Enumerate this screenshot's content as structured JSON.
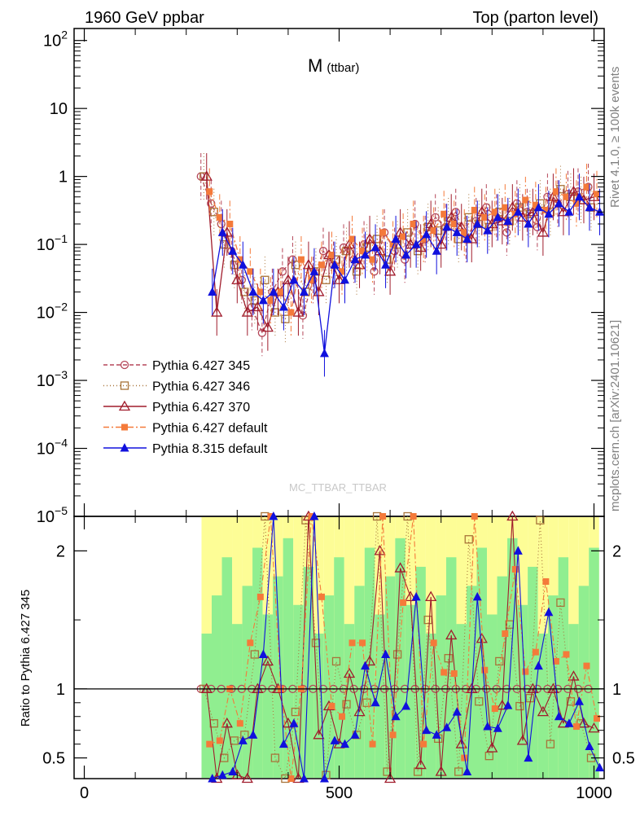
{
  "header": {
    "left": "1960 GeV ppbar",
    "right": "Top (parton level)"
  },
  "side": {
    "rivet": "Rivet 4.1.0, ≥ 100k events",
    "mcplots": "mcplots.cern.ch [arXiv:2401.10621]"
  },
  "watermark": "MC_TTBAR_TTBAR",
  "chart_data": {
    "type": "line",
    "title": "M",
    "title_sub": "(ttbar)",
    "xlabel": "",
    "ylabel": "",
    "ratio_ylabel": "Ratio to Pythia 6.427 345",
    "xlim": [
      -20,
      1020
    ],
    "ylim": [
      1e-05,
      150
    ],
    "ratio_ylim": [
      0.35,
      2.25
    ],
    "x_ticks": [
      0,
      500,
      1000
    ],
    "x_tick_labels": [
      "0",
      "500",
      "1000"
    ],
    "y_ticks": [
      100,
      10,
      1,
      0.1,
      0.01,
      0.001,
      0.0001,
      1e-05
    ],
    "y_tick_labels": [
      {
        "base": "10",
        "exp": "2"
      },
      {
        "base": "10",
        "exp": ""
      },
      {
        "base": "1",
        "exp": ""
      },
      {
        "base": "10",
        "exp": "−1"
      },
      {
        "base": "10",
        "exp": "−2"
      },
      {
        "base": "10",
        "exp": "−3"
      },
      {
        "base": "10",
        "exp": "−4"
      },
      {
        "base": "10",
        "exp": "−5"
      }
    ],
    "ratio_ticks": [
      0.5,
      1,
      2
    ],
    "ratio_tick_labels": [
      "0.5",
      "1",
      "2"
    ],
    "x": [
      240,
      260,
      280,
      300,
      320,
      340,
      360,
      380,
      400,
      420,
      440,
      460,
      480,
      500,
      520,
      540,
      560,
      580,
      600,
      620,
      640,
      660,
      680,
      700,
      720,
      740,
      760,
      780,
      800,
      820,
      840,
      860,
      880,
      900,
      920,
      940,
      960,
      980,
      1000
    ],
    "series": [
      {
        "name": "Pythia 6.427 345",
        "color": "#b5475a",
        "marker": "circle-open",
        "dash": "5,3",
        "values": [
          1.0,
          0.4,
          0.2,
          0.08,
          0.03,
          0.012,
          0.005,
          0.02,
          0.04,
          0.06,
          0.009,
          0.03,
          0.08,
          0.05,
          0.09,
          0.06,
          0.1,
          0.04,
          0.15,
          0.08,
          0.06,
          0.2,
          0.12,
          0.25,
          0.18,
          0.3,
          0.12,
          0.22,
          0.35,
          0.25,
          0.15,
          0.4,
          0.3,
          0.18,
          0.5,
          0.4,
          0.55,
          0.6,
          0.7
        ]
      },
      {
        "name": "Pythia 6.427 346",
        "color": "#a8743a",
        "marker": "square-open",
        "dash": "1,3",
        "values": [
          1.0,
          0.3,
          0.1,
          0.05,
          0.02,
          0.015,
          0.03,
          0.01,
          0.008,
          0.05,
          0.02,
          0.04,
          0.03,
          0.06,
          0.08,
          0.04,
          0.09,
          0.12,
          0.06,
          0.1,
          0.15,
          0.08,
          0.18,
          0.16,
          0.22,
          0.12,
          0.25,
          0.2,
          0.18,
          0.3,
          0.22,
          0.35,
          0.28,
          0.4,
          0.3,
          0.65,
          0.5,
          0.45,
          0.35
        ]
      },
      {
        "name": "Pythia 6.427 370",
        "color": "#a01c2c",
        "marker": "triangle-open",
        "dash": "",
        "values": [
          1.0,
          0.01,
          0.15,
          0.03,
          0.01,
          0.012,
          0.006,
          0.02,
          0.03,
          0.01,
          0.05,
          0.02,
          0.07,
          0.03,
          0.1,
          0.05,
          0.12,
          0.08,
          0.04,
          0.15,
          0.1,
          0.09,
          0.2,
          0.1,
          0.25,
          0.18,
          0.12,
          0.3,
          0.2,
          0.22,
          0.35,
          0.25,
          0.3,
          0.15,
          0.5,
          0.3,
          0.6,
          0.45,
          0.5
        ]
      },
      {
        "name": "Pythia 6.427 default",
        "color": "#f47a3a",
        "marker": "square-filled",
        "dash": "7,3,2,3",
        "values": [
          0.6,
          0.25,
          0.2,
          0.06,
          0.04,
          0.02,
          0.015,
          0.02,
          0.01,
          0.06,
          0.03,
          0.05,
          0.07,
          0.04,
          0.12,
          0.08,
          0.06,
          0.15,
          0.1,
          0.13,
          0.2,
          0.12,
          0.16,
          0.28,
          0.2,
          0.15,
          0.32,
          0.25,
          0.3,
          0.35,
          0.28,
          0.45,
          0.38,
          0.32,
          0.6,
          0.5,
          0.4,
          0.7,
          0.55
        ]
      },
      {
        "name": "Pythia 8.315 default",
        "color": "#1010dd",
        "marker": "triangle-filled",
        "dash": "",
        "values": [
          0.02,
          0.15,
          0.08,
          0.05,
          0.02,
          0.015,
          0.02,
          0.012,
          0.03,
          0.02,
          0.04,
          0.0025,
          0.05,
          0.03,
          0.06,
          0.07,
          0.09,
          0.05,
          0.12,
          0.07,
          0.1,
          0.14,
          0.08,
          0.18,
          0.15,
          0.12,
          0.2,
          0.16,
          0.25,
          0.22,
          0.3,
          0.2,
          0.35,
          0.28,
          0.4,
          0.3,
          0.5,
          0.35,
          0.3
        ]
      }
    ]
  }
}
